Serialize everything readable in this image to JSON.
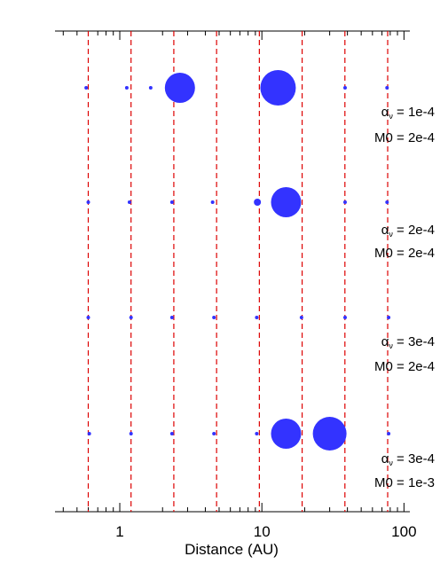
{
  "chart_data": {
    "type": "scatter",
    "xlabel": "Distance (AU)",
    "ylabel": "",
    "xscale": "log",
    "xlim": [
      0.35,
      110
    ],
    "x_ticks": [
      {
        "value": 1,
        "label": "1"
      },
      {
        "value": 10,
        "label": "10"
      },
      {
        "value": 100,
        "label": "100"
      }
    ],
    "grid": "off",
    "reference_lines": {
      "orientation": "vertical",
      "style": "dashed",
      "color": "#dd0000",
      "x": [
        0.6,
        1.2,
        2.4,
        4.8,
        9.6,
        19.2,
        38.4,
        76.8
      ]
    },
    "marker_color": "#3333ff",
    "series": [
      {
        "labels": [
          "α",
          "ν",
          " = 1e-4",
          "M0 = 2e-4"
        ],
        "points": [
          {
            "x": 0.58,
            "size": 2
          },
          {
            "x": 1.12,
            "size": 2
          },
          {
            "x": 1.65,
            "size": 2
          },
          {
            "x": 2.65,
            "size": 17
          },
          {
            "x": 13.0,
            "size": 20
          },
          {
            "x": 38.5,
            "size": 2
          },
          {
            "x": 76.0,
            "size": 2
          }
        ]
      },
      {
        "labels": [
          "α",
          "ν",
          " = 2e-4",
          "M0 = 2e-4"
        ],
        "points": [
          {
            "x": 0.6,
            "size": 2
          },
          {
            "x": 1.17,
            "size": 2
          },
          {
            "x": 2.33,
            "size": 2
          },
          {
            "x": 4.5,
            "size": 2
          },
          {
            "x": 9.3,
            "size": 4
          },
          {
            "x": 14.8,
            "size": 17
          },
          {
            "x": 38.5,
            "size": 2
          },
          {
            "x": 76.0,
            "size": 2
          }
        ]
      },
      {
        "labels": [
          "α",
          "ν",
          " = 3e-4",
          "M0 = 2e-4"
        ],
        "points": [
          {
            "x": 0.6,
            "size": 2
          },
          {
            "x": 1.2,
            "size": 2
          },
          {
            "x": 2.33,
            "size": 2
          },
          {
            "x": 4.6,
            "size": 2
          },
          {
            "x": 9.2,
            "size": 2
          },
          {
            "x": 19.0,
            "size": 2
          },
          {
            "x": 38.5,
            "size": 2
          },
          {
            "x": 78.0,
            "size": 2
          }
        ]
      },
      {
        "labels": [
          "α",
          "ν",
          " = 3e-4",
          "M0 = 1e-3"
        ],
        "points": [
          {
            "x": 0.61,
            "size": 2
          },
          {
            "x": 1.2,
            "size": 2
          },
          {
            "x": 2.33,
            "size": 2
          },
          {
            "x": 4.6,
            "size": 2
          },
          {
            "x": 9.2,
            "size": 2
          },
          {
            "x": 14.8,
            "size": 17
          },
          {
            "x": 30.0,
            "size": 19
          },
          {
            "x": 78.0,
            "size": 2
          }
        ]
      }
    ]
  }
}
